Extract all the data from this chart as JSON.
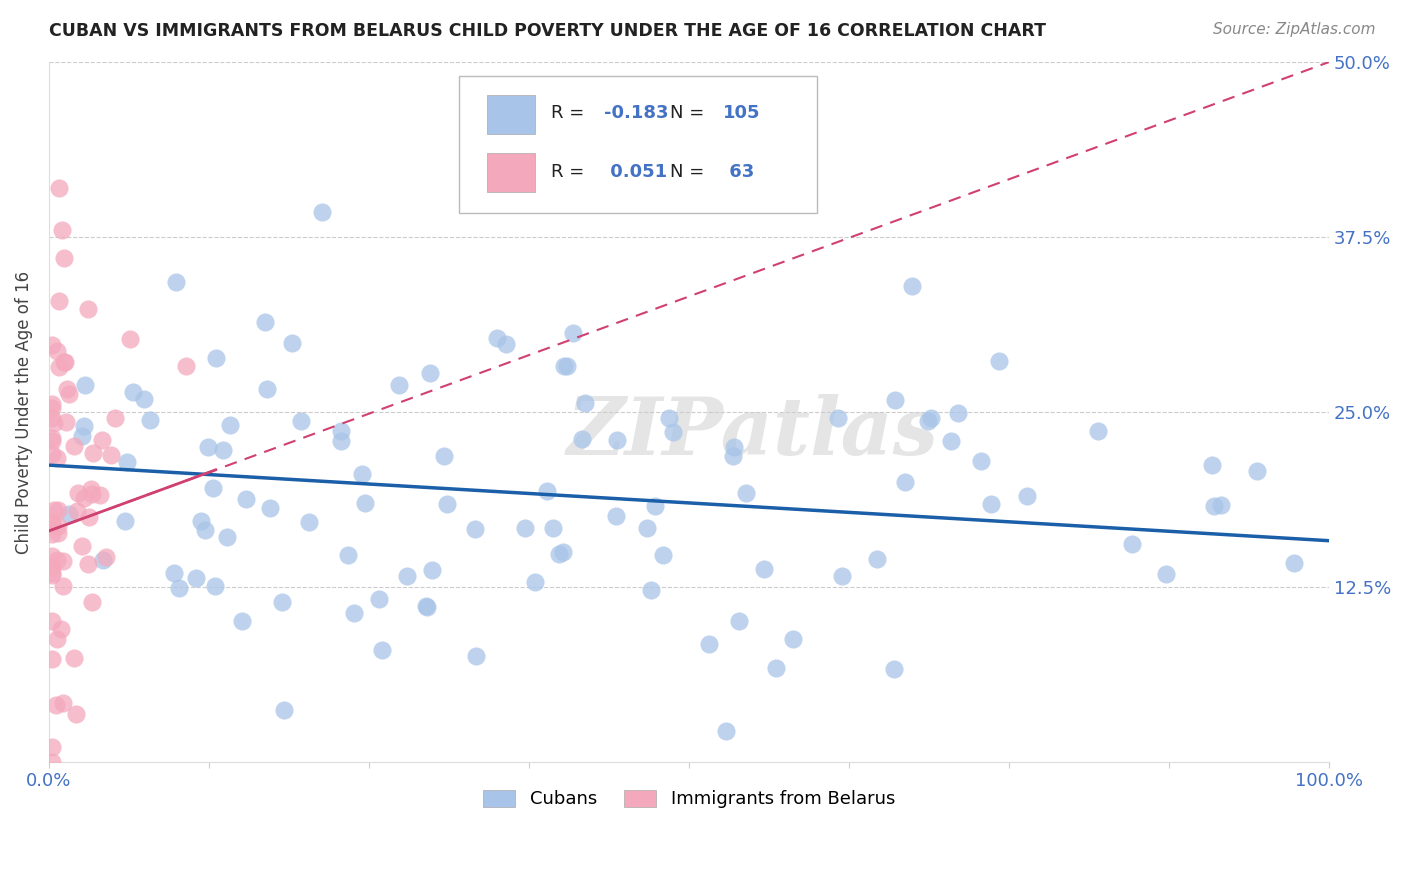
{
  "title": "CUBAN VS IMMIGRANTS FROM BELARUS CHILD POVERTY UNDER THE AGE OF 16 CORRELATION CHART",
  "source": "Source: ZipAtlas.com",
  "ylabel": "Child Poverty Under the Age of 16",
  "xlim": [
    0.0,
    1.0
  ],
  "ylim": [
    0.0,
    0.5
  ],
  "legend_cubans_R": "-0.183",
  "legend_cubans_N": "105",
  "legend_belarus_R": "0.051",
  "legend_belarus_N": "63",
  "cubans_color": "#a8c4e8",
  "belarus_color": "#f4a8bc",
  "cubans_line_color": "#1a5fa8",
  "belarus_line_color": "#d04070",
  "background_color": "#ffffff",
  "grid_color": "#cccccc",
  "watermark": "ZIPatlas",
  "cubans_trend_start_y": 0.212,
  "cubans_trend_end_y": 0.158,
  "belarus_trend_start_y": 0.165,
  "belarus_trend_end_y": 0.5,
  "tick_color": "#4472c4",
  "title_color": "#222222",
  "source_color": "#888888",
  "legend_text_color": "#222222",
  "legend_value_color": "#4472c4"
}
